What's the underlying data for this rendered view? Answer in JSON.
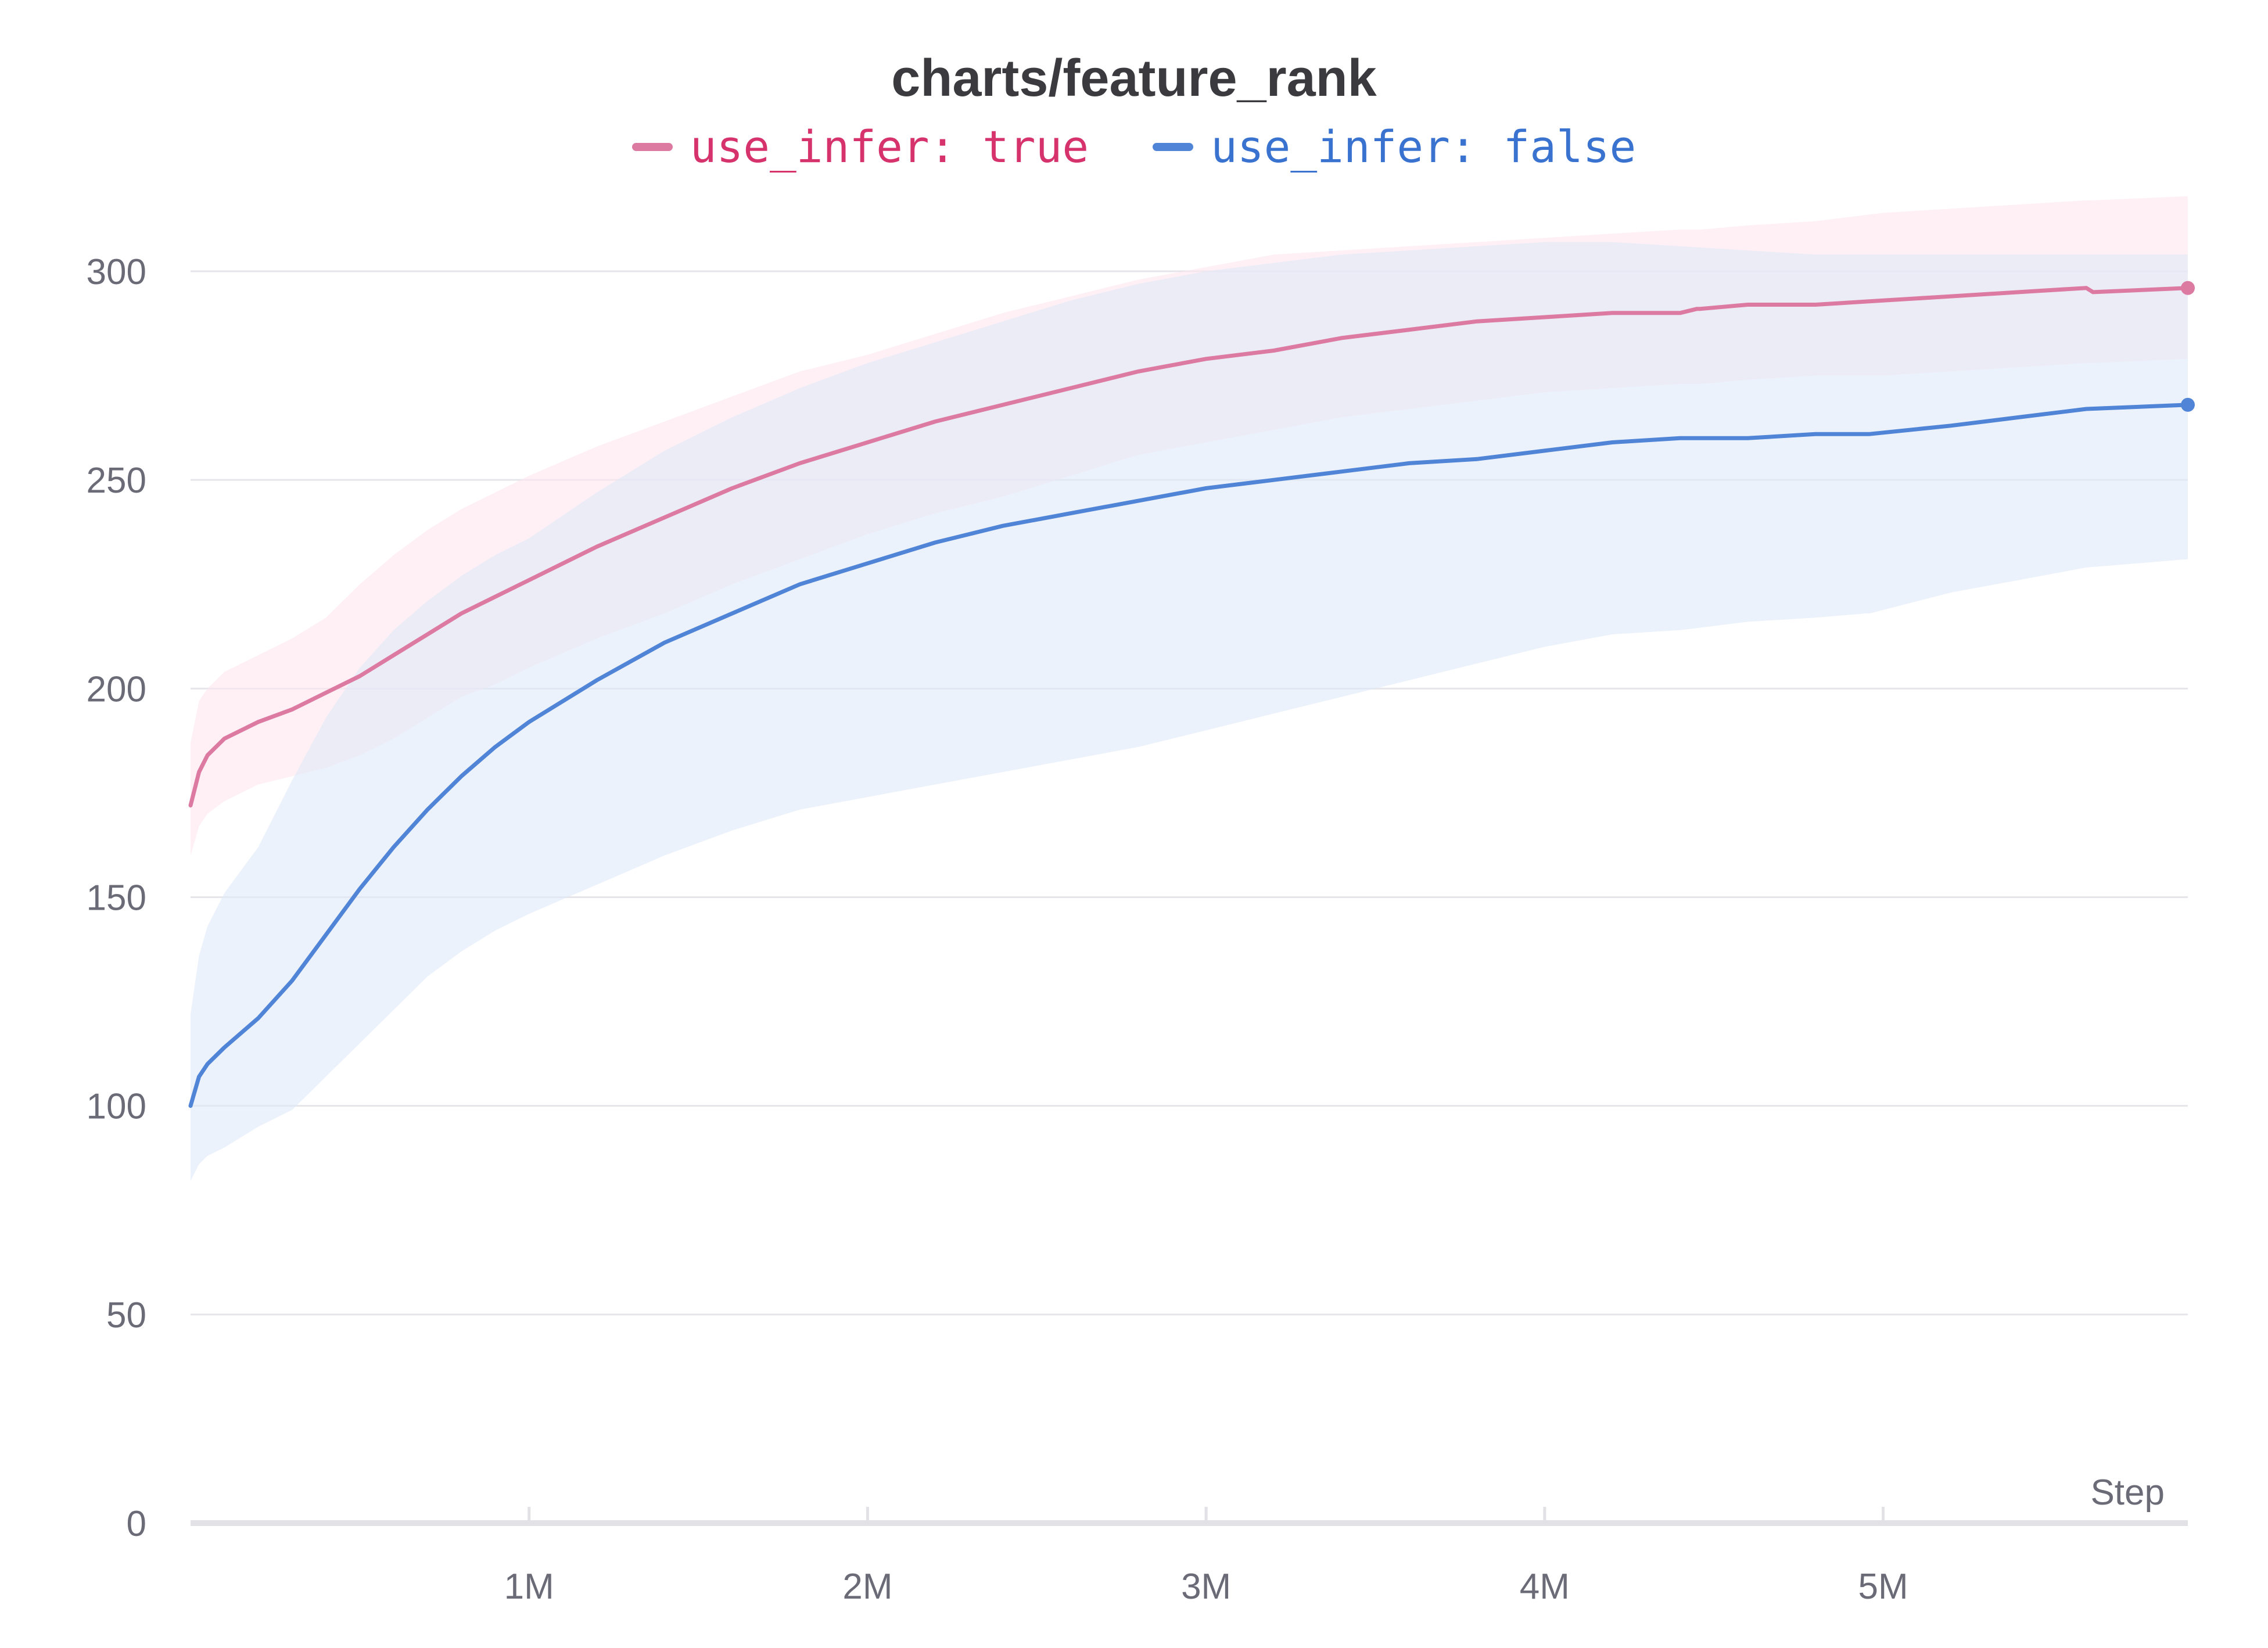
{
  "chart_data": {
    "type": "line",
    "title": "charts/feature_rank",
    "xlabel": "Step",
    "ylabel": "",
    "xlim": [
      0,
      5900000
    ],
    "ylim": [
      0,
      300
    ],
    "x_ticks": [
      {
        "value": 1000000,
        "label": "1M"
      },
      {
        "value": 2000000,
        "label": "2M"
      },
      {
        "value": 3000000,
        "label": "3M"
      },
      {
        "value": 4000000,
        "label": "4M"
      },
      {
        "value": 5000000,
        "label": "5M"
      }
    ],
    "y_ticks": [
      {
        "value": 0,
        "label": "0"
      },
      {
        "value": 50,
        "label": "50"
      },
      {
        "value": 100,
        "label": "100"
      },
      {
        "value": 150,
        "label": "150"
      },
      {
        "value": 200,
        "label": "200"
      },
      {
        "value": 250,
        "label": "250"
      },
      {
        "value": 300,
        "label": "300"
      }
    ],
    "grid": true,
    "legend_position": "top",
    "series": [
      {
        "name": "use_infer: true",
        "color": "#dc7aa2",
        "band_color": "#fde6ee",
        "x": [
          0,
          25000,
          50000,
          100000,
          200000,
          300000,
          400000,
          500000,
          600000,
          700000,
          800000,
          900000,
          1000000,
          1200000,
          1400000,
          1600000,
          1800000,
          2000000,
          2200000,
          2400000,
          2600000,
          2800000,
          3000000,
          3200000,
          3400000,
          3600000,
          3800000,
          4000000,
          4200000,
          4400000,
          4450000,
          4460000,
          4600000,
          4800000,
          5000000,
          5200000,
          5400000,
          5600000,
          5620000,
          5900000
        ],
        "y": [
          172,
          180,
          184,
          188,
          192,
          195,
          199,
          203,
          208,
          213,
          218,
          222,
          226,
          234,
          241,
          248,
          254,
          259,
          264,
          268,
          272,
          276,
          279,
          281,
          284,
          286,
          288,
          289,
          290,
          290,
          291,
          291,
          292,
          292,
          293,
          294,
          295,
          296,
          295,
          296
        ],
        "lower": [
          160,
          167,
          170,
          173,
          177,
          179,
          181,
          184,
          188,
          193,
          198,
          201,
          205,
          212,
          218,
          225,
          231,
          237,
          242,
          246,
          251,
          256,
          259,
          262,
          265,
          267,
          269,
          271,
          272,
          273,
          273,
          273,
          274,
          275,
          275,
          276,
          277,
          278,
          278,
          279
        ],
        "upper": [
          187,
          197,
          200,
          204,
          208,
          212,
          217,
          225,
          232,
          238,
          243,
          247,
          251,
          258,
          264,
          270,
          276,
          280,
          285,
          290,
          294,
          298,
          301,
          304,
          305,
          306,
          307,
          308,
          309,
          310,
          310,
          310,
          311,
          312,
          314,
          315,
          316,
          317,
          317,
          318
        ]
      },
      {
        "name": "use_infer: false",
        "color": "#5084d6",
        "band_color": "#dfe9f9",
        "x": [
          0,
          25000,
          50000,
          100000,
          200000,
          300000,
          400000,
          500000,
          600000,
          700000,
          800000,
          900000,
          1000000,
          1200000,
          1400000,
          1600000,
          1800000,
          2000000,
          2200000,
          2400000,
          2600000,
          2800000,
          3000000,
          3200000,
          3400000,
          3600000,
          3800000,
          4000000,
          4200000,
          4400000,
          4600000,
          4800000,
          4950000,
          4960000,
          5200000,
          5400000,
          5600000,
          5900000
        ],
        "y": [
          100,
          107,
          110,
          114,
          121,
          130,
          141,
          152,
          162,
          171,
          179,
          186,
          192,
          202,
          211,
          218,
          225,
          230,
          235,
          239,
          242,
          245,
          248,
          250,
          252,
          254,
          255,
          257,
          259,
          260,
          260,
          261,
          261,
          261,
          263,
          265,
          267,
          268
        ],
        "lower": [
          82,
          86,
          88,
          90,
          95,
          99,
          107,
          115,
          123,
          131,
          137,
          142,
          146,
          153,
          160,
          166,
          171,
          174,
          177,
          180,
          183,
          186,
          190,
          194,
          198,
          202,
          206,
          210,
          213,
          214,
          216,
          217,
          218,
          218,
          223,
          226,
          229,
          231
        ],
        "upper": [
          122,
          136,
          143,
          151,
          162,
          178,
          193,
          205,
          214,
          221,
          227,
          232,
          236,
          247,
          257,
          265,
          272,
          278,
          283,
          288,
          293,
          297,
          300,
          302,
          304,
          305,
          306,
          307,
          307,
          306,
          305,
          304,
          304,
          304,
          304,
          304,
          304,
          304
        ]
      }
    ]
  }
}
